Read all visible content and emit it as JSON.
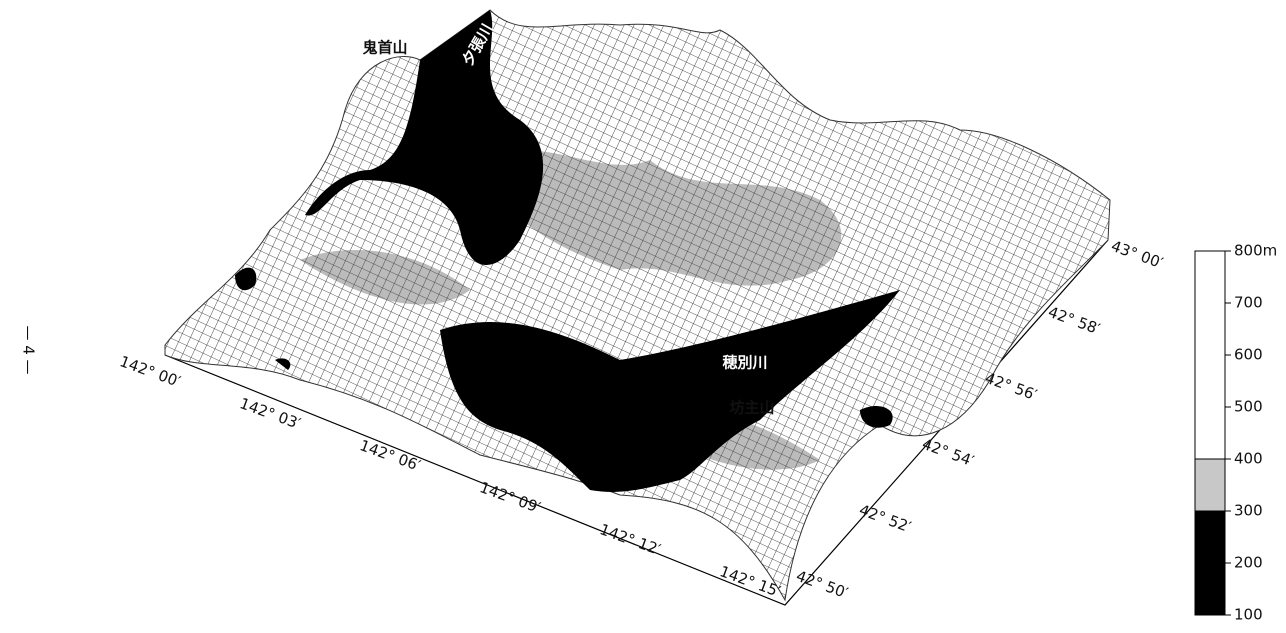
{
  "page_number": "— 4 —",
  "place_labels": [
    "鬼首山",
    "夕張川",
    "穂別川",
    "坊主山"
  ],
  "longitude_labels": [
    "142° 00′",
    "142° 03′",
    "142° 06′",
    "142° 09′",
    "142° 12′",
    "142° 15′"
  ],
  "latitude_labels": [
    "42° 50′",
    "42° 52′",
    "42° 54′",
    "42° 56′",
    "42° 58′",
    "43° 00′"
  ],
  "legend": {
    "labels": [
      "800m",
      "700",
      "600",
      "500",
      "400",
      "300",
      "200",
      "100"
    ]
  }
}
